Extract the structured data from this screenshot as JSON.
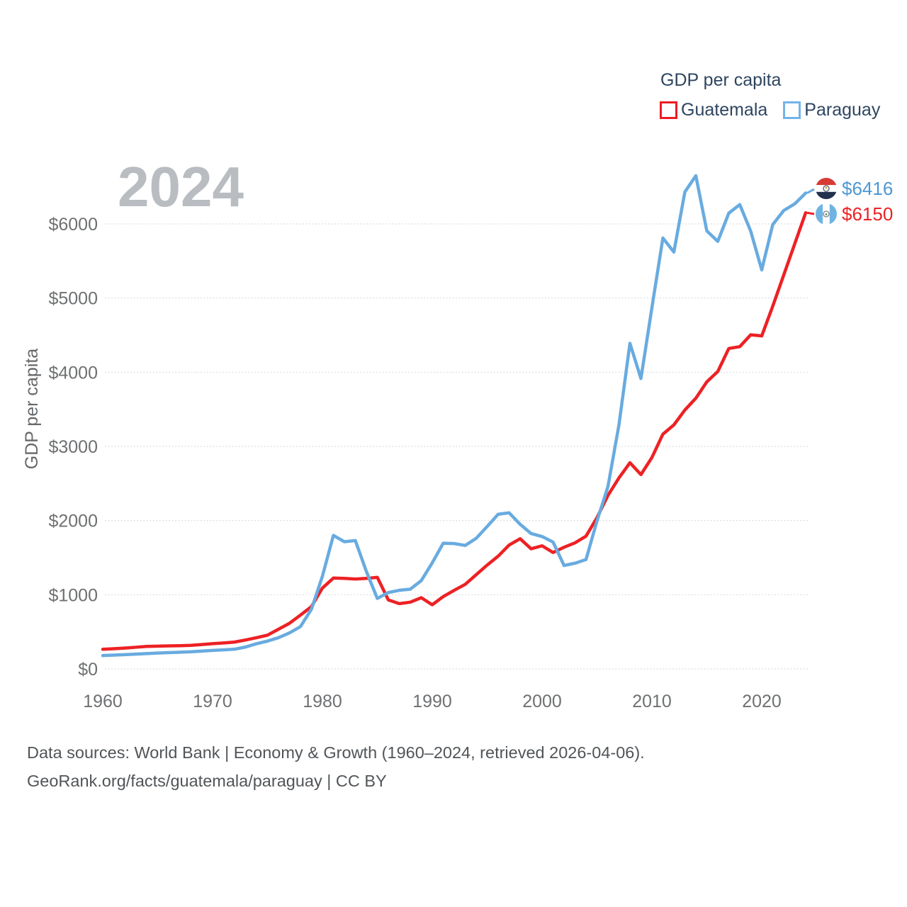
{
  "watermark": "2024",
  "legend": {
    "title": "GDP per capita",
    "items": [
      {
        "label": "Guatemala",
        "color": "#ee1c25"
      },
      {
        "label": "Paraguay",
        "color": "#74b4e8"
      }
    ]
  },
  "end_labels": [
    {
      "country": "Paraguay",
      "value": 6416,
      "value_label": "$6416",
      "flag_icon": "paraguay-flag",
      "text_color": "#4e97d3"
    },
    {
      "country": "Guatemala",
      "value": 6150,
      "value_label": "$6150",
      "flag_icon": "guatemala-flag",
      "text_color": "#ed2124"
    }
  ],
  "footer": {
    "line1": "Data sources: World Bank | Economy & Growth (1960–2024, retrieved 2026-04-06).",
    "line2": "GeoRank.org/facts/guatemala/paraguay | CC BY"
  },
  "chart_data": {
    "type": "line",
    "title": "GDP per capita",
    "xlabel": "",
    "ylabel": "GDP per capita",
    "ylim": [
      0,
      6700
    ],
    "grid": true,
    "legend_position": "top-right",
    "y_ticks": [
      0,
      1000,
      2000,
      3000,
      4000,
      5000,
      6000
    ],
    "y_tick_prefix": "$",
    "x_ticks": [
      1960,
      1970,
      1980,
      1990,
      2000,
      2010,
      2020
    ],
    "x": [
      1960,
      1961,
      1962,
      1963,
      1964,
      1965,
      1966,
      1967,
      1968,
      1969,
      1970,
      1971,
      1972,
      1973,
      1974,
      1975,
      1976,
      1977,
      1978,
      1979,
      1980,
      1981,
      1982,
      1983,
      1984,
      1985,
      1986,
      1987,
      1988,
      1989,
      1990,
      1991,
      1992,
      1993,
      1994,
      1995,
      1996,
      1997,
      1998,
      1999,
      2000,
      2001,
      2002,
      2003,
      2004,
      2005,
      2006,
      2007,
      2008,
      2009,
      2010,
      2011,
      2012,
      2013,
      2014,
      2015,
      2016,
      2017,
      2018,
      2019,
      2020,
      2021,
      2022,
      2023,
      2024
    ],
    "series": [
      {
        "name": "Guatemala",
        "color": "#ed2124",
        "values": [
          265,
          272,
          281,
          292,
          303,
          307,
          310,
          313,
          318,
          328,
          340,
          350,
          362,
          390,
          421,
          455,
          535,
          615,
          725,
          840,
          1090,
          1225,
          1220,
          1212,
          1220,
          1235,
          930,
          880,
          900,
          960,
          865,
          975,
          1060,
          1140,
          1270,
          1400,
          1520,
          1670,
          1755,
          1620,
          1660,
          1570,
          1640,
          1700,
          1790,
          2040,
          2340,
          2575,
          2780,
          2620,
          2850,
          3165,
          3290,
          3490,
          3650,
          3870,
          4010,
          4320,
          4345,
          4505,
          4490,
          4890,
          5310,
          5730,
          6150
        ]
      },
      {
        "name": "Paraguay",
        "color": "#68abe0",
        "values": [
          180,
          186,
          192,
          200,
          207,
          214,
          220,
          225,
          231,
          240,
          250,
          257,
          266,
          295,
          340,
          375,
          421,
          485,
          570,
          805,
          1250,
          1800,
          1715,
          1730,
          1315,
          950,
          1030,
          1060,
          1075,
          1190,
          1430,
          1695,
          1690,
          1665,
          1760,
          1920,
          2085,
          2105,
          1950,
          1825,
          1785,
          1710,
          1395,
          1425,
          1475,
          1995,
          2460,
          3290,
          4390,
          3915,
          4870,
          5810,
          5620,
          6430,
          6650,
          5905,
          5765,
          6145,
          6260,
          5900,
          5380,
          5990,
          6180,
          6270,
          6416
        ]
      }
    ]
  }
}
